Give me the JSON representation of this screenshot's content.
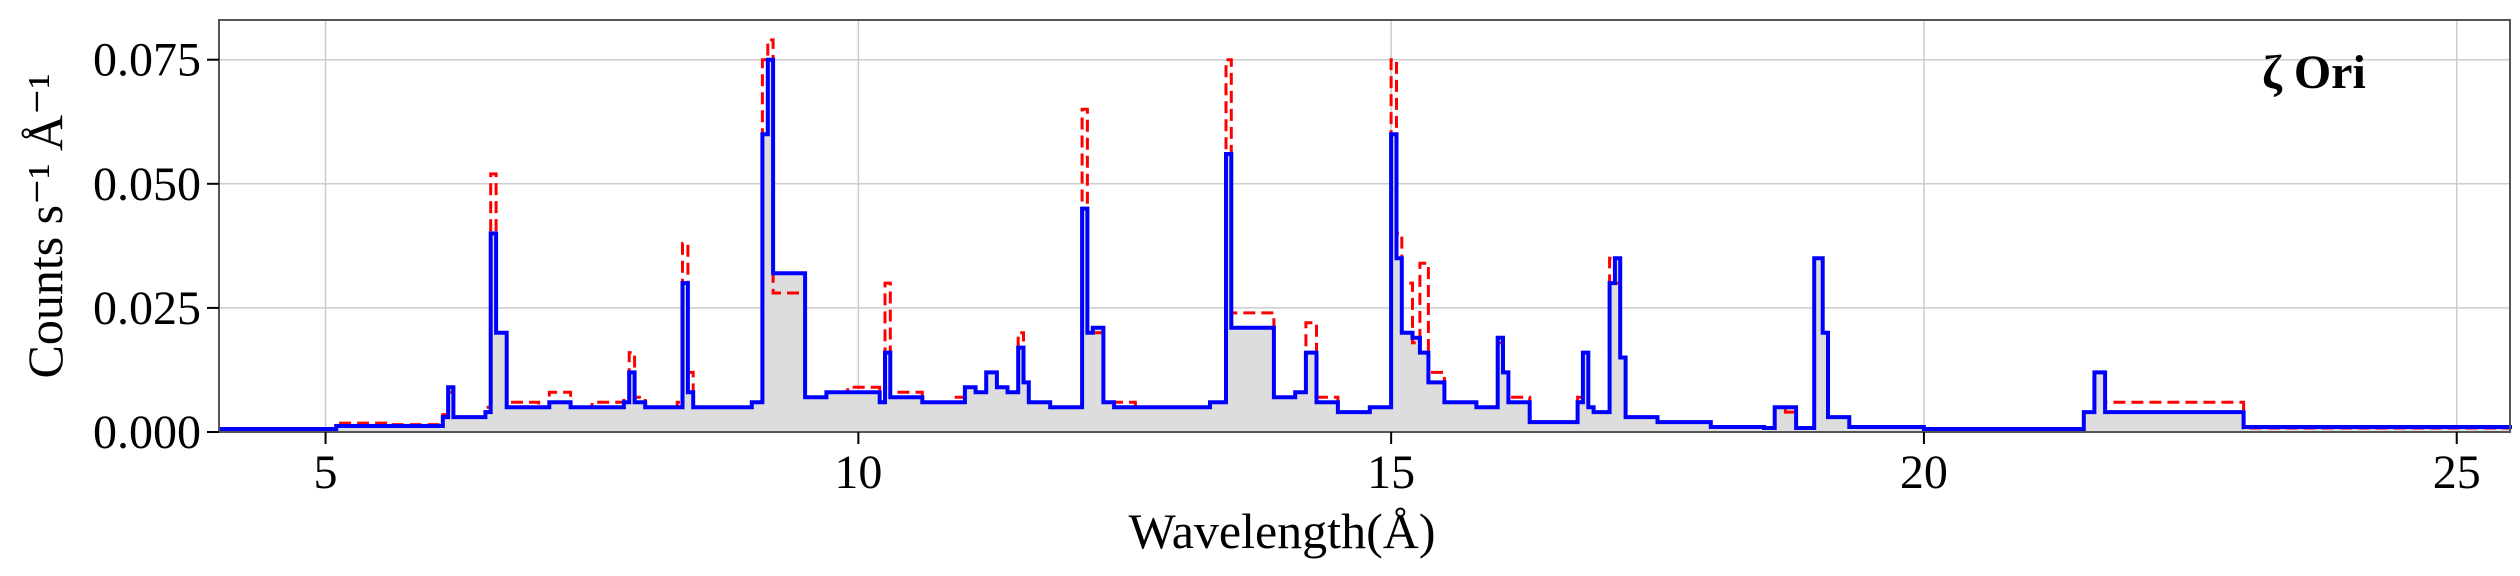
{
  "chart_data": {
    "type": "line",
    "title": "",
    "annotation": "ζ Ori",
    "xlabel": "Wavelength(Å)",
    "ylabel": "Counts s⁻¹ Å⁻¹",
    "xlim": [
      4.0,
      25.5
    ],
    "ylim": [
      0.0,
      0.083
    ],
    "x_ticks": [
      5,
      10,
      15,
      20,
      25
    ],
    "y_ticks": [
      0.0,
      0.025,
      0.05,
      0.075
    ],
    "y_tick_labels": [
      "0.000",
      "0.025",
      "0.050",
      "0.075"
    ],
    "grid": true,
    "legend": "none",
    "colors": {
      "data": "#ff0000",
      "model": "#0000ff",
      "fill": "#dddddd",
      "grid": "#cccccc"
    },
    "series": [
      {
        "style": "red dashed step",
        "x": [
          4.0,
          5.0,
          5.1,
          5.6,
          6.1,
          6.15,
          6.2,
          6.5,
          6.55,
          6.6,
          6.65,
          6.7,
          7.0,
          7.1,
          7.3,
          7.5,
          7.8,
          7.85,
          7.9,
          8.0,
          8.3,
          8.35,
          8.4,
          8.45,
          8.5,
          9.0,
          9.1,
          9.15,
          9.2,
          9.3,
          9.5,
          9.7,
          9.9,
          10.2,
          10.25,
          10.3,
          10.6,
          10.9,
          11.0,
          11.1,
          11.2,
          11.3,
          11.4,
          11.5,
          11.55,
          11.6,
          11.8,
          12.0,
          12.1,
          12.15,
          12.2,
          12.3,
          12.4,
          12.6,
          13.0,
          13.3,
          13.45,
          13.5,
          13.7,
          13.9,
          14.1,
          14.2,
          14.3,
          14.5,
          14.8,
          15.0,
          15.05,
          15.1,
          15.2,
          15.27,
          15.35,
          15.5,
          15.8,
          16.0,
          16.05,
          16.1,
          16.3,
          16.6,
          16.75,
          16.8,
          16.85,
          16.9,
          17.05,
          17.1,
          17.15,
          17.2,
          17.5,
          18.0,
          18.5,
          18.6,
          18.7,
          18.8,
          18.97,
          19.05,
          19.1,
          19.3,
          20.0,
          21.0,
          21.5,
          21.6,
          21.7,
          22.0,
          23.0,
          25.5
        ],
        "y": [
          0.0006,
          0.0006,
          0.0018,
          0.0015,
          0.0035,
          0.008,
          0.003,
          0.005,
          0.052,
          0.02,
          0.02,
          0.006,
          0.005,
          0.008,
          0.005,
          0.006,
          0.007,
          0.016,
          0.007,
          0.005,
          0.006,
          0.038,
          0.012,
          0.005,
          0.005,
          0.006,
          0.075,
          0.079,
          0.028,
          0.028,
          0.007,
          0.008,
          0.009,
          0.006,
          0.03,
          0.008,
          0.006,
          0.007,
          0.009,
          0.008,
          0.012,
          0.009,
          0.008,
          0.02,
          0.01,
          0.006,
          0.005,
          0.005,
          0.065,
          0.02,
          0.02,
          0.006,
          0.006,
          0.005,
          0.005,
          0.006,
          0.075,
          0.024,
          0.024,
          0.007,
          0.008,
          0.022,
          0.007,
          0.004,
          0.005,
          0.075,
          0.04,
          0.03,
          0.018,
          0.034,
          0.012,
          0.006,
          0.005,
          0.018,
          0.012,
          0.007,
          0.002,
          0.002,
          0.007,
          0.016,
          0.005,
          0.004,
          0.035,
          0.03,
          0.015,
          0.003,
          0.002,
          0.001,
          0.0008,
          0.005,
          0.004,
          0.0008,
          0.035,
          0.02,
          0.003,
          0.001,
          0.0006,
          0.0006,
          0.004,
          0.012,
          0.006,
          0.006,
          0.0008,
          0.0006
        ]
      },
      {
        "style": "blue solid step",
        "x": [
          4.0,
          5.0,
          5.1,
          5.6,
          6.1,
          6.15,
          6.2,
          6.5,
          6.55,
          6.6,
          6.65,
          6.7,
          7.0,
          7.1,
          7.3,
          7.5,
          7.8,
          7.85,
          7.9,
          8.0,
          8.3,
          8.35,
          8.4,
          8.45,
          8.5,
          9.0,
          9.1,
          9.15,
          9.2,
          9.3,
          9.5,
          9.7,
          9.9,
          10.2,
          10.25,
          10.3,
          10.6,
          10.9,
          11.0,
          11.1,
          11.2,
          11.3,
          11.4,
          11.5,
          11.55,
          11.6,
          11.8,
          12.0,
          12.1,
          12.15,
          12.2,
          12.3,
          12.4,
          12.6,
          13.0,
          13.3,
          13.45,
          13.5,
          13.7,
          13.9,
          14.1,
          14.2,
          14.3,
          14.5,
          14.8,
          15.0,
          15.05,
          15.1,
          15.2,
          15.27,
          15.35,
          15.5,
          15.8,
          16.0,
          16.05,
          16.1,
          16.3,
          16.6,
          16.75,
          16.8,
          16.85,
          16.9,
          17.05,
          17.1,
          17.15,
          17.2,
          17.5,
          18.0,
          18.5,
          18.6,
          18.7,
          18.8,
          18.97,
          19.05,
          19.1,
          19.3,
          20.0,
          21.0,
          21.5,
          21.6,
          21.7,
          22.0,
          23.0,
          25.5
        ],
        "y": [
          0.0006,
          0.0006,
          0.0012,
          0.0012,
          0.003,
          0.009,
          0.003,
          0.004,
          0.04,
          0.02,
          0.02,
          0.005,
          0.005,
          0.006,
          0.005,
          0.005,
          0.006,
          0.012,
          0.006,
          0.005,
          0.005,
          0.03,
          0.008,
          0.005,
          0.005,
          0.006,
          0.06,
          0.075,
          0.032,
          0.032,
          0.007,
          0.008,
          0.008,
          0.006,
          0.016,
          0.007,
          0.006,
          0.006,
          0.009,
          0.008,
          0.012,
          0.009,
          0.008,
          0.017,
          0.01,
          0.006,
          0.005,
          0.005,
          0.045,
          0.02,
          0.021,
          0.006,
          0.005,
          0.005,
          0.005,
          0.006,
          0.056,
          0.021,
          0.021,
          0.007,
          0.008,
          0.016,
          0.006,
          0.004,
          0.005,
          0.06,
          0.035,
          0.02,
          0.019,
          0.016,
          0.01,
          0.006,
          0.005,
          0.019,
          0.012,
          0.006,
          0.002,
          0.002,
          0.006,
          0.016,
          0.005,
          0.004,
          0.03,
          0.035,
          0.015,
          0.003,
          0.002,
          0.001,
          0.0008,
          0.005,
          0.005,
          0.0008,
          0.035,
          0.02,
          0.003,
          0.001,
          0.0006,
          0.0006,
          0.004,
          0.012,
          0.004,
          0.004,
          0.001,
          0.0006
        ]
      }
    ]
  }
}
